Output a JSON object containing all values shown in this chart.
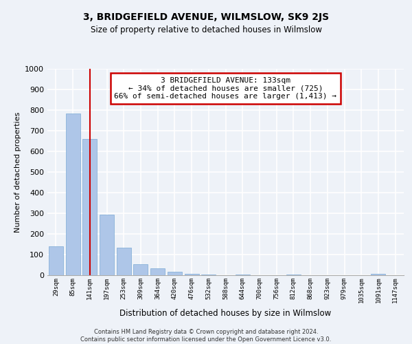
{
  "title1": "3, BRIDGEFIELD AVENUE, WILMSLOW, SK9 2JS",
  "title2": "Size of property relative to detached houses in Wilmslow",
  "xlabel": "Distribution of detached houses by size in Wilmslow",
  "ylabel": "Number of detached properties",
  "bar_labels": [
    "29sqm",
    "85sqm",
    "141sqm",
    "197sqm",
    "253sqm",
    "309sqm",
    "364sqm",
    "420sqm",
    "476sqm",
    "532sqm",
    "588sqm",
    "644sqm",
    "700sqm",
    "756sqm",
    "812sqm",
    "868sqm",
    "923sqm",
    "979sqm",
    "1035sqm",
    "1091sqm",
    "1147sqm"
  ],
  "bar_values": [
    140,
    785,
    660,
    295,
    133,
    55,
    33,
    18,
    8,
    5,
    0,
    3,
    0,
    0,
    3,
    0,
    0,
    0,
    0,
    7,
    0
  ],
  "bar_color": "#aec6e8",
  "vline_index": 2,
  "vline_color": "#cc0000",
  "annotation_line1": "3 BRIDGEFIELD AVENUE: 133sqm",
  "annotation_line2": "← 34% of detached houses are smaller (725)",
  "annotation_line3": "66% of semi-detached houses are larger (1,413) →",
  "annotation_box_color": "#ffffff",
  "annotation_box_edge": "#cc0000",
  "ylim": [
    0,
    1000
  ],
  "yticks": [
    0,
    100,
    200,
    300,
    400,
    500,
    600,
    700,
    800,
    900,
    1000
  ],
  "footer": "Contains HM Land Registry data © Crown copyright and database right 2024.\nContains public sector information licensed under the Open Government Licence v3.0.",
  "bg_color": "#eef2f8",
  "plot_bg_color": "#eef2f8"
}
